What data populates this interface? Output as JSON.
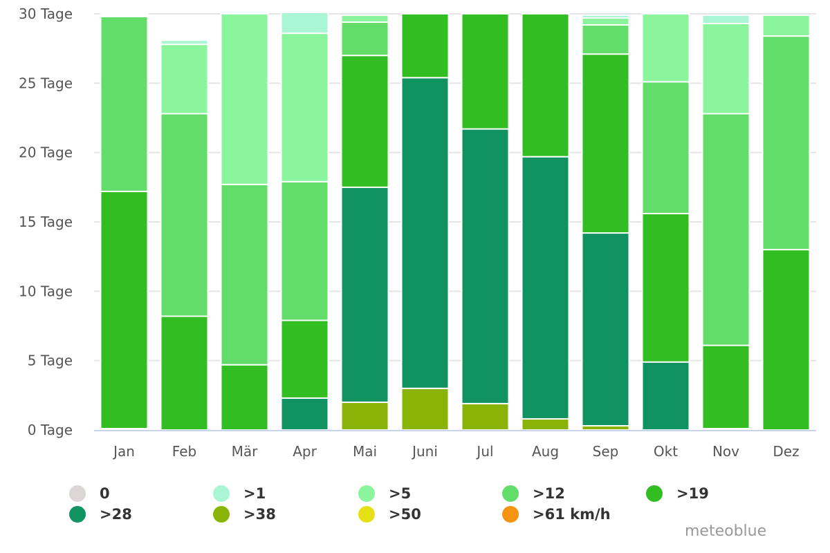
{
  "chart_data": {
    "type": "bar",
    "stacked": true,
    "categories": [
      "Jan",
      "Feb",
      "Mär",
      "Apr",
      "Mai",
      "Juni",
      "Jul",
      "Aug",
      "Sep",
      "Okt",
      "Nov",
      "Dez"
    ],
    "ylim": [
      0,
      30
    ],
    "yticks": [
      {
        "value": 0,
        "label": "0 Tage"
      },
      {
        "value": 5,
        "label": "5 Tage"
      },
      {
        "value": 10,
        "label": "10 Tage"
      },
      {
        "value": 15,
        "label": "15 Tage"
      },
      {
        "value": 20,
        "label": "20 Tage"
      },
      {
        "value": 25,
        "label": "25 Tage"
      },
      {
        "value": 30,
        "label": "30 Tage"
      }
    ],
    "grid": true,
    "legend_position": "bottom",
    "series": [
      {
        "name": "0",
        "color": "#dcd6d6",
        "values": [
          0,
          0,
          0,
          0,
          0,
          0,
          0,
          0,
          0,
          0,
          0,
          0
        ]
      },
      {
        "name": ">1",
        "color": "#aaf5d4",
        "values": [
          0.1,
          0.3,
          0,
          1.5,
          0,
          0,
          0,
          0,
          0.2,
          0,
          0.6,
          0
        ]
      },
      {
        "name": ">5",
        "color": "#8af59c",
        "values": [
          0.1,
          5.0,
          12.3,
          10.7,
          0.5,
          0,
          0,
          0,
          0.5,
          4.9,
          6.5,
          1.5
        ]
      },
      {
        "name": ">12",
        "color": "#62dd6a",
        "values": [
          12.6,
          14.6,
          13.0,
          10.0,
          2.4,
          0,
          0,
          0,
          2.1,
          9.5,
          16.7,
          15.4
        ]
      },
      {
        "name": ">19",
        "color": "#32bd22",
        "values": [
          17.1,
          8.2,
          4.7,
          5.6,
          9.5,
          4.6,
          8.3,
          10.3,
          12.9,
          10.7,
          6.0,
          13.0
        ]
      },
      {
        "name": ">28",
        "color": "#109360",
        "values": [
          0.1,
          0,
          0,
          2.3,
          15.5,
          22.4,
          19.8,
          18.9,
          13.9,
          4.9,
          0.1,
          0
        ]
      },
      {
        "name": ">38",
        "color": "#8ab307",
        "values": [
          0,
          0,
          0,
          0,
          2.0,
          3.0,
          1.9,
          0.8,
          0.3,
          0,
          0,
          0
        ]
      },
      {
        "name": ">50",
        "color": "#e6e016",
        "values": [
          0,
          0,
          0,
          0,
          0,
          0,
          0,
          0,
          0,
          0,
          0,
          0
        ]
      },
      {
        "name": ">61 km/h",
        "color": "#f59411",
        "values": [
          0,
          0,
          0,
          0,
          0,
          0,
          0,
          0,
          0,
          0,
          0,
          0
        ]
      }
    ]
  },
  "credit": "meteoblue"
}
